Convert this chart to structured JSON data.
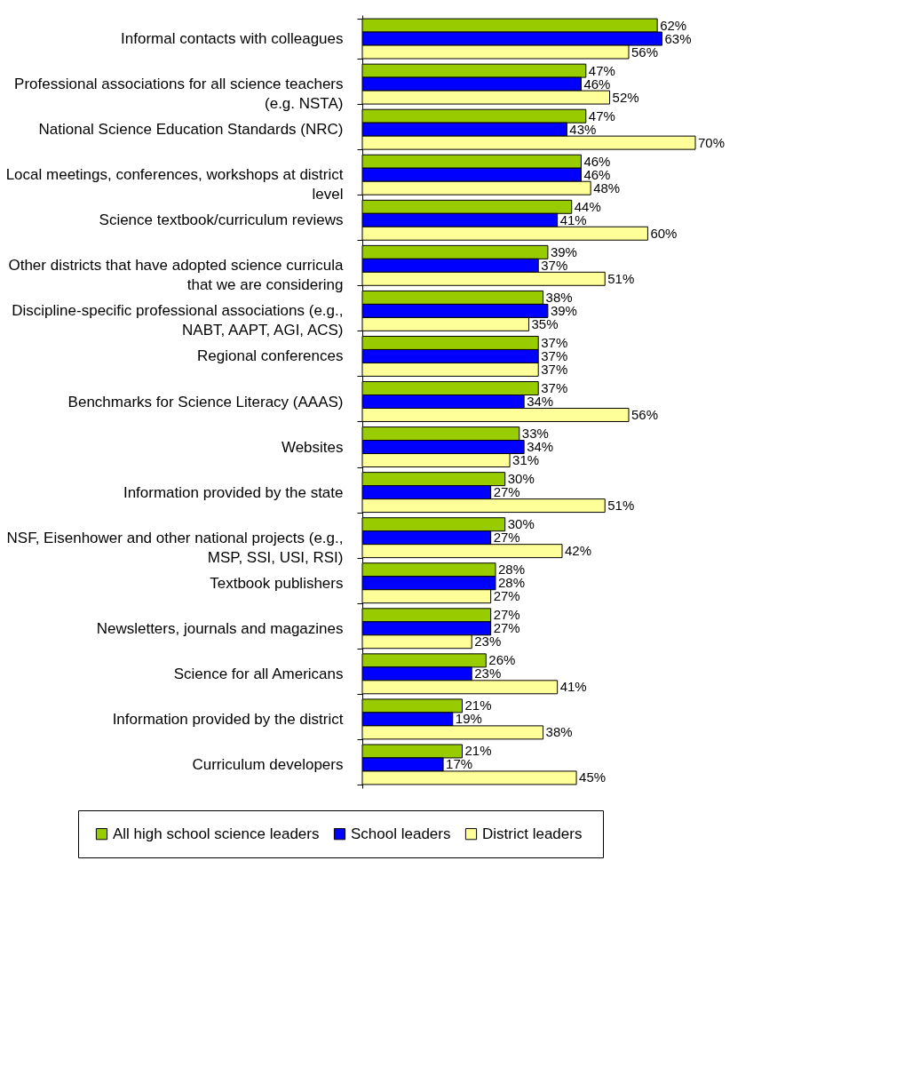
{
  "chart_data": {
    "type": "bar",
    "orientation": "horizontal",
    "legend": "bottom",
    "categories": [
      "Informal contacts with colleagues",
      "Professional associations for all science teachers (e.g. NSTA)",
      "National Science Education Standards (NRC)",
      "Local meetings, conferences, workshops at district level",
      "Science textbook/curriculum reviews",
      "Other districts that have adopted science curricula that we are considering",
      "Discipline-specific professional associations (e.g., NABT, AAPT, AGI, ACS)",
      "Regional conferences",
      "Benchmarks for Science Literacy (AAAS)",
      "Websites",
      "Information provided by the state",
      "NSF, Eisenhower and other national projects (e.g., MSP, SSI, USI, RSI)",
      "Textbook publishers",
      "Newsletters, journals and magazines",
      "Science for all Americans",
      "Information provided by the district",
      "Curriculum developers"
    ],
    "series": [
      {
        "name": "All high school science leaders",
        "color": "#99cc00",
        "values": [
          62,
          47,
          47,
          46,
          44,
          39,
          38,
          37,
          37,
          33,
          30,
          30,
          28,
          27,
          26,
          21,
          21
        ],
        "value_labels": [
          "62%",
          "47%",
          "47%",
          "46%",
          "44%",
          "39%",
          "38%",
          "37%",
          "37%",
          "33%",
          "30%",
          "30%",
          "28%",
          "27%",
          "26%",
          "21%",
          "21%"
        ]
      },
      {
        "name": "School leaders",
        "color": "#0000ff",
        "values": [
          63,
          46,
          43,
          46,
          41,
          37,
          39,
          37,
          34,
          34,
          27,
          27,
          28,
          27,
          23,
          19,
          17
        ],
        "value_labels": [
          "63%",
          "46%",
          "43%",
          "46%",
          "41%",
          "37%",
          "39%",
          "37%",
          "34%",
          "34%",
          "27%",
          "27%",
          "28%",
          "27%",
          "23%",
          "19%",
          "17%"
        ]
      },
      {
        "name": "District  leaders",
        "color": "#ffff99",
        "values": [
          56,
          52,
          70,
          48,
          60,
          51,
          35,
          37,
          56,
          31,
          51,
          42,
          27,
          23,
          41,
          38,
          45
        ],
        "value_labels": [
          "56%",
          "52%",
          "70%",
          "48%",
          "60%",
          "51%",
          "35%",
          "37%",
          "56%",
          "31%",
          "51%",
          "42%",
          "27%",
          "23%",
          "41%",
          "38%",
          "45%"
        ]
      }
    ]
  }
}
